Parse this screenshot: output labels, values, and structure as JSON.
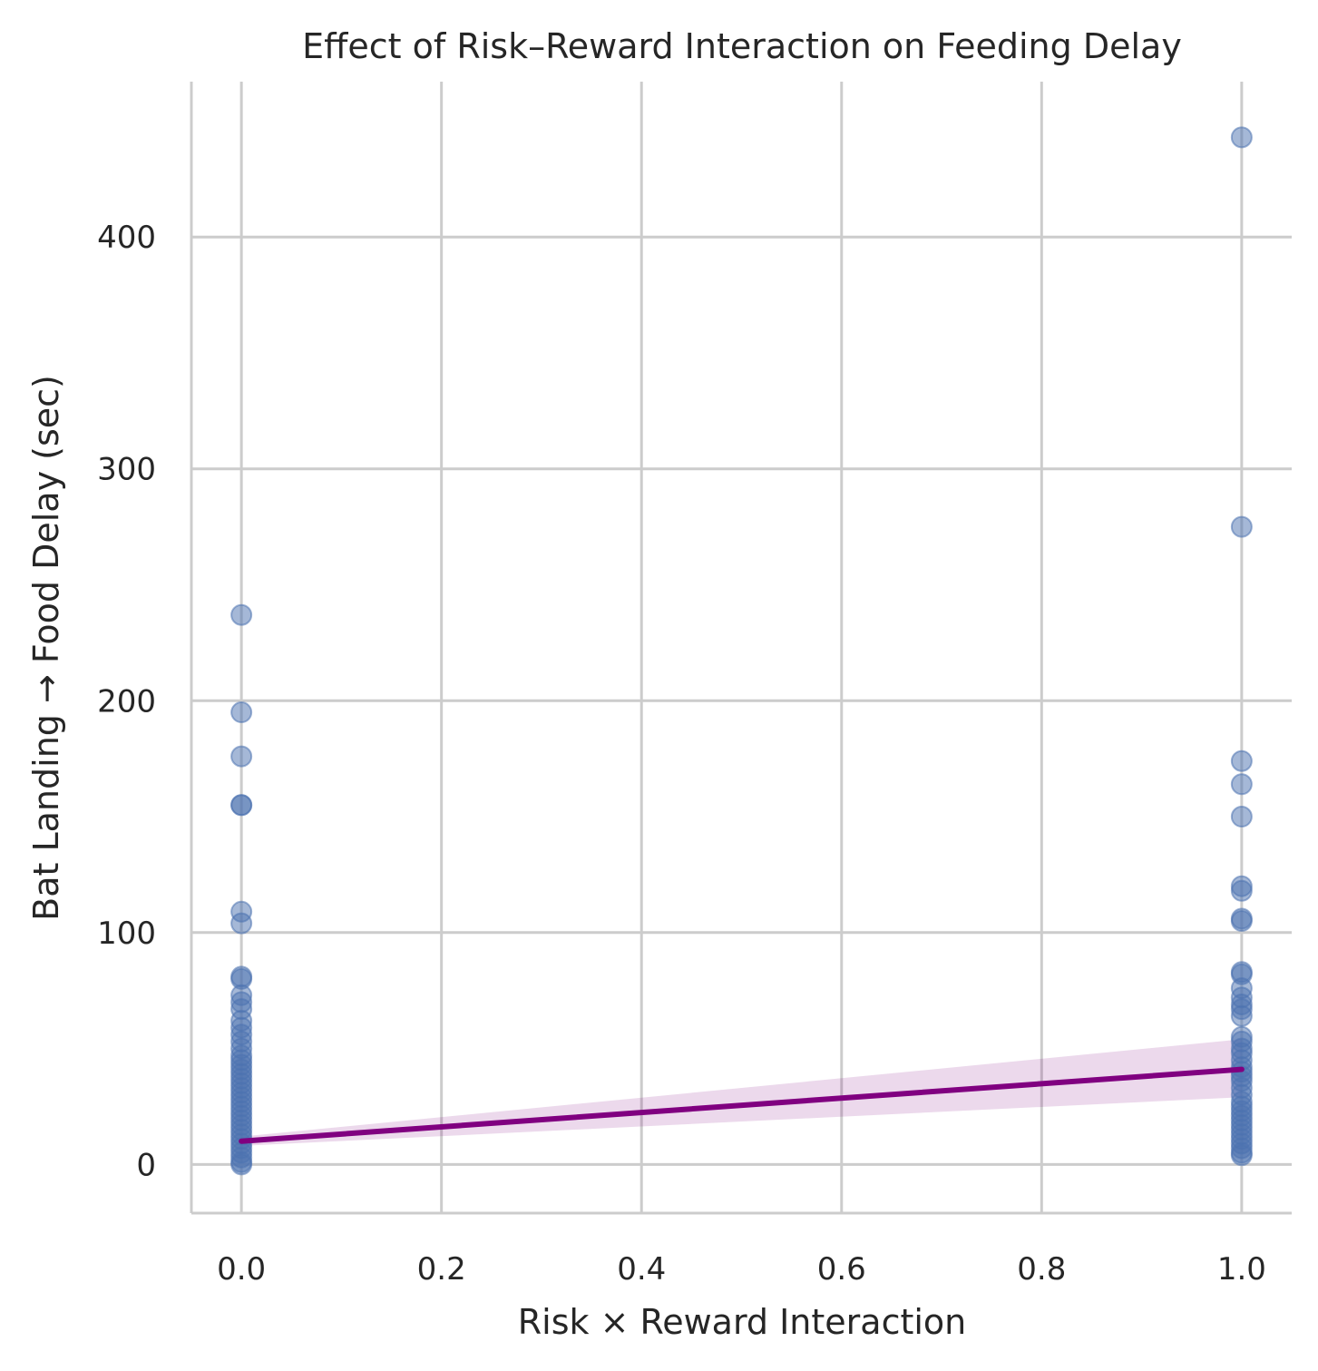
{
  "chart_data": {
    "type": "scatter",
    "title": "Effect of Risk–Reward Interaction on Feeding Delay",
    "xlabel": "Risk × Reward Interaction",
    "ylabel": "Bat Landing → Food Delay (sec)",
    "xlim": [
      -0.05,
      1.05
    ],
    "ylim": [
      -21,
      467
    ],
    "x_ticks": [
      0.0,
      0.2,
      0.4,
      0.6,
      0.8,
      1.0
    ],
    "x_tick_labels": [
      "0.0",
      "0.2",
      "0.4",
      "0.6",
      "0.8",
      "1.0"
    ],
    "y_ticks": [
      0,
      100,
      200,
      300,
      400
    ],
    "y_tick_labels": [
      "0",
      "100",
      "200",
      "300",
      "400"
    ],
    "grid": true,
    "colors": {
      "points": "#4c72b0",
      "fit_line": "#800080",
      "ci_band": "#800080"
    },
    "points": [
      {
        "x": 0,
        "y": 237
      },
      {
        "x": 0,
        "y": 195
      },
      {
        "x": 0,
        "y": 176
      },
      {
        "x": 0,
        "y": 155
      },
      {
        "x": 0,
        "y": 155
      },
      {
        "x": 0,
        "y": 109
      },
      {
        "x": 0,
        "y": 104
      },
      {
        "x": 0,
        "y": 81
      },
      {
        "x": 0,
        "y": 80
      },
      {
        "x": 0,
        "y": 73
      },
      {
        "x": 0,
        "y": 70
      },
      {
        "x": 0,
        "y": 67
      },
      {
        "x": 0,
        "y": 62
      },
      {
        "x": 0,
        "y": 59
      },
      {
        "x": 0,
        "y": 56
      },
      {
        "x": 0,
        "y": 53
      },
      {
        "x": 0,
        "y": 50
      },
      {
        "x": 0,
        "y": 47
      },
      {
        "x": 0,
        "y": 45
      },
      {
        "x": 0,
        "y": 43
      },
      {
        "x": 0,
        "y": 41
      },
      {
        "x": 0,
        "y": 39
      },
      {
        "x": 0,
        "y": 37
      },
      {
        "x": 0,
        "y": 35
      },
      {
        "x": 0,
        "y": 33
      },
      {
        "x": 0,
        "y": 31
      },
      {
        "x": 0,
        "y": 29
      },
      {
        "x": 0,
        "y": 27
      },
      {
        "x": 0,
        "y": 25
      },
      {
        "x": 0,
        "y": 23
      },
      {
        "x": 0,
        "y": 21
      },
      {
        "x": 0,
        "y": 19
      },
      {
        "x": 0,
        "y": 17
      },
      {
        "x": 0,
        "y": 15
      },
      {
        "x": 0,
        "y": 13
      },
      {
        "x": 0,
        "y": 11
      },
      {
        "x": 0,
        "y": 9
      },
      {
        "x": 0,
        "y": 7
      },
      {
        "x": 0,
        "y": 5
      },
      {
        "x": 0,
        "y": 3
      },
      {
        "x": 0,
        "y": 1
      },
      {
        "x": 0,
        "y": 0
      },
      {
        "x": 1,
        "y": 443
      },
      {
        "x": 1,
        "y": 275
      },
      {
        "x": 1,
        "y": 174
      },
      {
        "x": 1,
        "y": 164
      },
      {
        "x": 1,
        "y": 150
      },
      {
        "x": 1,
        "y": 120
      },
      {
        "x": 1,
        "y": 118
      },
      {
        "x": 1,
        "y": 106
      },
      {
        "x": 1,
        "y": 105
      },
      {
        "x": 1,
        "y": 83
      },
      {
        "x": 1,
        "y": 82
      },
      {
        "x": 1,
        "y": 76
      },
      {
        "x": 1,
        "y": 72
      },
      {
        "x": 1,
        "y": 69
      },
      {
        "x": 1,
        "y": 67
      },
      {
        "x": 1,
        "y": 64
      },
      {
        "x": 1,
        "y": 55
      },
      {
        "x": 1,
        "y": 53
      },
      {
        "x": 1,
        "y": 50
      },
      {
        "x": 1,
        "y": 48
      },
      {
        "x": 1,
        "y": 45
      },
      {
        "x": 1,
        "y": 42
      },
      {
        "x": 1,
        "y": 40
      },
      {
        "x": 1,
        "y": 38
      },
      {
        "x": 1,
        "y": 36
      },
      {
        "x": 1,
        "y": 33
      },
      {
        "x": 1,
        "y": 30
      },
      {
        "x": 1,
        "y": 27
      },
      {
        "x": 1,
        "y": 25
      },
      {
        "x": 1,
        "y": 23
      },
      {
        "x": 1,
        "y": 21
      },
      {
        "x": 1,
        "y": 19
      },
      {
        "x": 1,
        "y": 17
      },
      {
        "x": 1,
        "y": 15
      },
      {
        "x": 1,
        "y": 13
      },
      {
        "x": 1,
        "y": 11
      },
      {
        "x": 1,
        "y": 9
      },
      {
        "x": 1,
        "y": 7
      },
      {
        "x": 1,
        "y": 5
      },
      {
        "x": 1,
        "y": 4
      }
    ],
    "fit_line": {
      "x": [
        0,
        1
      ],
      "y": [
        10,
        41
      ]
    },
    "ci_band": {
      "x": [
        0,
        1
      ],
      "lower": [
        8,
        29
      ],
      "upper": [
        12,
        54
      ]
    }
  }
}
